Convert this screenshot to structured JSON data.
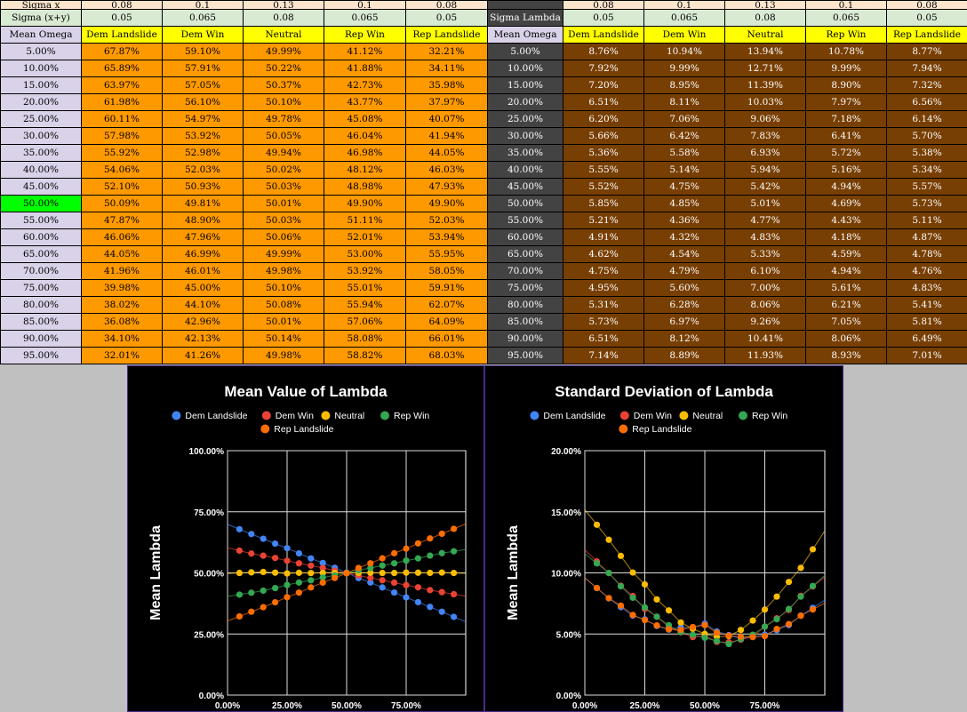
{
  "left_table": {
    "row_values_top": [
      "0.08",
      "0.1",
      "0.13",
      "0.1",
      "0.08"
    ],
    "sigma_x_label": "Sigma x",
    "sigma_xy_label": "Sigma (x+y)",
    "sigma_xy_values": [
      "0.05",
      "0.065",
      "0.08",
      "0.065",
      "0.05"
    ],
    "header": [
      "Mean Omega",
      "Dem Landslide",
      "Dem Win",
      "Neutral",
      "Rep Win",
      "Rep Landslide"
    ],
    "rows": [
      [
        "5.00%",
        "67.87%",
        "59.10%",
        "49.99%",
        "41.12%",
        "32.21%"
      ],
      [
        "10.00%",
        "65.89%",
        "57.91%",
        "50.22%",
        "41.88%",
        "34.11%"
      ],
      [
        "15.00%",
        "63.97%",
        "57.05%",
        "50.37%",
        "42.73%",
        "35.98%"
      ],
      [
        "20.00%",
        "61.98%",
        "56.10%",
        "50.10%",
        "43.77%",
        "37.97%"
      ],
      [
        "25.00%",
        "60.11%",
        "54.97%",
        "49.78%",
        "45.08%",
        "40.07%"
      ],
      [
        "30.00%",
        "57.98%",
        "53.92%",
        "50.05%",
        "46.04%",
        "41.94%"
      ],
      [
        "35.00%",
        "55.92%",
        "52.98%",
        "49.94%",
        "46.98%",
        "44.05%"
      ],
      [
        "40.00%",
        "54.06%",
        "52.03%",
        "50.02%",
        "48.12%",
        "46.03%"
      ],
      [
        "45.00%",
        "52.10%",
        "50.93%",
        "50.03%",
        "48.98%",
        "47.93%"
      ],
      [
        "50.00%",
        "50.09%",
        "49.81%",
        "50.01%",
        "49.90%",
        "49.90%"
      ],
      [
        "55.00%",
        "47.87%",
        "48.90%",
        "50.03%",
        "51.11%",
        "52.03%"
      ],
      [
        "60.00%",
        "46.06%",
        "47.96%",
        "50.06%",
        "52.01%",
        "53.94%"
      ],
      [
        "65.00%",
        "44.05%",
        "46.99%",
        "49.99%",
        "53.00%",
        "55.95%"
      ],
      [
        "70.00%",
        "41.96%",
        "46.01%",
        "49.98%",
        "53.92%",
        "58.05%"
      ],
      [
        "75.00%",
        "39.98%",
        "45.00%",
        "50.10%",
        "55.01%",
        "59.91%"
      ],
      [
        "80.00%",
        "38.02%",
        "44.10%",
        "50.08%",
        "55.94%",
        "62.07%"
      ],
      [
        "85.00%",
        "36.08%",
        "42.96%",
        "50.01%",
        "57.06%",
        "64.09%"
      ],
      [
        "90.00%",
        "34.10%",
        "42.13%",
        "50.14%",
        "58.08%",
        "66.01%"
      ],
      [
        "95.00%",
        "32.01%",
        "41.26%",
        "49.98%",
        "58.82%",
        "68.03%"
      ]
    ],
    "highlight_row": 9
  },
  "right_table": {
    "row_values_top": [
      "0.08",
      "0.1",
      "0.13",
      "0.1",
      "0.08"
    ],
    "sigma_lambda_label": "Sigma Lambda",
    "sigma_values": [
      "0.05",
      "0.065",
      "0.08",
      "0.065",
      "0.05"
    ],
    "header": [
      "Mean Omega",
      "Dem Landslide",
      "Dem Win",
      "Neutral",
      "Rep Win",
      "Rep Landslide"
    ],
    "rows": [
      [
        "5.00%",
        "8.76%",
        "10.94%",
        "13.94%",
        "10.78%",
        "8.77%"
      ],
      [
        "10.00%",
        "7.92%",
        "9.99%",
        "12.71%",
        "9.99%",
        "7.94%"
      ],
      [
        "15.00%",
        "7.20%",
        "8.95%",
        "11.39%",
        "8.90%",
        "7.32%"
      ],
      [
        "20.00%",
        "6.51%",
        "8.11%",
        "10.03%",
        "7.97%",
        "6.56%"
      ],
      [
        "25.00%",
        "6.20%",
        "7.06%",
        "9.06%",
        "7.18%",
        "6.14%"
      ],
      [
        "30.00%",
        "5.66%",
        "6.42%",
        "7.83%",
        "6.41%",
        "5.70%"
      ],
      [
        "35.00%",
        "5.36%",
        "5.58%",
        "6.93%",
        "5.72%",
        "5.38%"
      ],
      [
        "40.00%",
        "5.55%",
        "5.14%",
        "5.94%",
        "5.16%",
        "5.34%"
      ],
      [
        "45.00%",
        "5.52%",
        "4.75%",
        "5.42%",
        "4.94%",
        "5.57%"
      ],
      [
        "50.00%",
        "5.85%",
        "4.85%",
        "5.01%",
        "4.69%",
        "5.73%"
      ],
      [
        "55.00%",
        "5.21%",
        "4.36%",
        "4.77%",
        "4.43%",
        "5.11%"
      ],
      [
        "60.00%",
        "4.91%",
        "4.32%",
        "4.83%",
        "4.18%",
        "4.87%"
      ],
      [
        "65.00%",
        "4.62%",
        "4.54%",
        "5.33%",
        "4.59%",
        "4.78%"
      ],
      [
        "70.00%",
        "4.75%",
        "4.79%",
        "6.10%",
        "4.94%",
        "4.76%"
      ],
      [
        "75.00%",
        "4.95%",
        "5.60%",
        "7.00%",
        "5.61%",
        "4.83%"
      ],
      [
        "80.00%",
        "5.31%",
        "6.28%",
        "8.06%",
        "6.21%",
        "5.41%"
      ],
      [
        "85.00%",
        "5.73%",
        "6.97%",
        "9.26%",
        "7.05%",
        "5.81%"
      ],
      [
        "90.00%",
        "6.51%",
        "8.12%",
        "10.41%",
        "8.06%",
        "6.49%"
      ],
      [
        "95.00%",
        "7.14%",
        "8.89%",
        "11.93%",
        "8.93%",
        "7.01%"
      ]
    ]
  },
  "colors": {
    "dem_landslide": "#4285f4",
    "dem_win": "#ea4335",
    "neutral": "#fbbc04",
    "rep_win": "#34a853",
    "rep_landslide": "#ff6d01"
  },
  "chart_data": [
    {
      "type": "line",
      "title": "Mean Value of Lambda",
      "ylabel": "Mean   Lambda",
      "xlabel": "",
      "x": [
        0.05,
        0.1,
        0.15,
        0.2,
        0.25,
        0.3,
        0.35,
        0.4,
        0.45,
        0.5,
        0.55,
        0.6,
        0.65,
        0.7,
        0.75,
        0.8,
        0.85,
        0.9,
        0.95
      ],
      "xlim": [
        0,
        1
      ],
      "ylim": [
        0,
        1
      ],
      "x_ticks": [
        "0.00%",
        "25.00%",
        "50.00%",
        "75.00%"
      ],
      "y_ticks": [
        "0.00%",
        "25.00%",
        "50.00%",
        "75.00%",
        "100.00%"
      ],
      "legend": "top",
      "grid": true,
      "series": [
        {
          "name": "Dem Landslide",
          "color": "#4285f4",
          "values": [
            0.6787,
            0.6589,
            0.6397,
            0.6198,
            0.6011,
            0.5798,
            0.5592,
            0.5406,
            0.521,
            0.5009,
            0.4787,
            0.4606,
            0.4405,
            0.4196,
            0.3998,
            0.3802,
            0.3608,
            0.341,
            0.3201
          ]
        },
        {
          "name": "Dem Win",
          "color": "#ea4335",
          "values": [
            0.591,
            0.5791,
            0.5705,
            0.561,
            0.5497,
            0.5392,
            0.5298,
            0.5203,
            0.5093,
            0.4981,
            0.489,
            0.4796,
            0.4699,
            0.4601,
            0.45,
            0.441,
            0.4296,
            0.4213,
            0.4126
          ]
        },
        {
          "name": "Neutral",
          "color": "#fbbc04",
          "values": [
            0.4999,
            0.5022,
            0.5037,
            0.501,
            0.4978,
            0.5005,
            0.4994,
            0.5002,
            0.5003,
            0.5001,
            0.5003,
            0.5006,
            0.4999,
            0.4998,
            0.501,
            0.5008,
            0.5001,
            0.5014,
            0.4998
          ]
        },
        {
          "name": "Rep Win",
          "color": "#34a853",
          "values": [
            0.4112,
            0.4188,
            0.4273,
            0.4377,
            0.4508,
            0.4604,
            0.4698,
            0.4812,
            0.4898,
            0.499,
            0.5111,
            0.5201,
            0.53,
            0.5392,
            0.5501,
            0.5594,
            0.5706,
            0.5808,
            0.5882
          ]
        },
        {
          "name": "Rep Landslide",
          "color": "#ff6d01",
          "values": [
            0.3221,
            0.3411,
            0.3598,
            0.3797,
            0.4007,
            0.4194,
            0.4405,
            0.4603,
            0.4793,
            0.499,
            0.5203,
            0.5394,
            0.5595,
            0.5805,
            0.5991,
            0.6207,
            0.6409,
            0.6601,
            0.6803
          ]
        }
      ]
    },
    {
      "type": "line",
      "title": "Standard Deviation of Lambda",
      "ylabel": "Mean   Lambda",
      "xlabel": "",
      "x": [
        0.05,
        0.1,
        0.15,
        0.2,
        0.25,
        0.3,
        0.35,
        0.4,
        0.45,
        0.5,
        0.55,
        0.6,
        0.65,
        0.7,
        0.75,
        0.8,
        0.85,
        0.9,
        0.95
      ],
      "xlim": [
        0,
        1
      ],
      "ylim": [
        0,
        0.2
      ],
      "x_ticks": [
        "0.00%",
        "25.00%",
        "50.00%",
        "75.00%"
      ],
      "y_ticks": [
        "0.00%",
        "5.00%",
        "10.00%",
        "15.00%",
        "20.00%"
      ],
      "legend": "top",
      "grid": true,
      "series": [
        {
          "name": "Dem Landslide",
          "color": "#4285f4",
          "values": [
            0.0876,
            0.0792,
            0.072,
            0.0651,
            0.062,
            0.0566,
            0.0536,
            0.0555,
            0.0552,
            0.0585,
            0.0521,
            0.0491,
            0.0462,
            0.0475,
            0.0495,
            0.0531,
            0.0573,
            0.0651,
            0.0714
          ]
        },
        {
          "name": "Dem Win",
          "color": "#ea4335",
          "values": [
            0.1094,
            0.0999,
            0.0895,
            0.0811,
            0.0706,
            0.0642,
            0.0558,
            0.0514,
            0.0475,
            0.0485,
            0.0436,
            0.0432,
            0.0454,
            0.0479,
            0.056,
            0.0628,
            0.0697,
            0.0812,
            0.0889
          ]
        },
        {
          "name": "Neutral",
          "color": "#fbbc04",
          "values": [
            0.1394,
            0.1271,
            0.1139,
            0.1003,
            0.0906,
            0.0783,
            0.0693,
            0.0594,
            0.0542,
            0.0501,
            0.0477,
            0.0483,
            0.0533,
            0.061,
            0.07,
            0.0806,
            0.0926,
            0.1041,
            0.1193
          ]
        },
        {
          "name": "Rep Win",
          "color": "#34a853",
          "values": [
            0.1078,
            0.0999,
            0.089,
            0.0797,
            0.0718,
            0.0641,
            0.0572,
            0.0516,
            0.0494,
            0.0469,
            0.0443,
            0.0418,
            0.0459,
            0.0494,
            0.0561,
            0.0621,
            0.0705,
            0.0806,
            0.0893
          ]
        },
        {
          "name": "Rep Landslide",
          "color": "#ff6d01",
          "values": [
            0.0877,
            0.0794,
            0.0732,
            0.0656,
            0.0614,
            0.057,
            0.0538,
            0.0534,
            0.0557,
            0.0573,
            0.0511,
            0.0487,
            0.0478,
            0.0476,
            0.0483,
            0.0541,
            0.0581,
            0.0649,
            0.0701
          ]
        }
      ]
    }
  ]
}
